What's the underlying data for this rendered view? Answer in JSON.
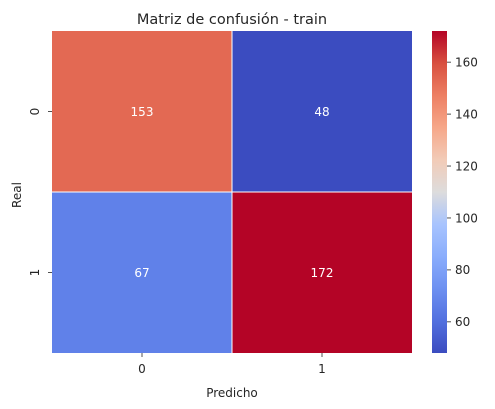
{
  "chart_data": {
    "type": "heatmap",
    "title": "Matriz de confusión - train",
    "xlabel": "Predicho",
    "ylabel": "Real",
    "x_categories": [
      "0",
      "1"
    ],
    "y_categories": [
      "0",
      "1"
    ],
    "values": [
      [
        153,
        48
      ],
      [
        67,
        172
      ]
    ],
    "colormap": "coolwarm",
    "color_range": [
      48,
      172
    ],
    "colorbar_ticks": [
      60,
      80,
      100,
      120,
      140,
      160
    ]
  }
}
